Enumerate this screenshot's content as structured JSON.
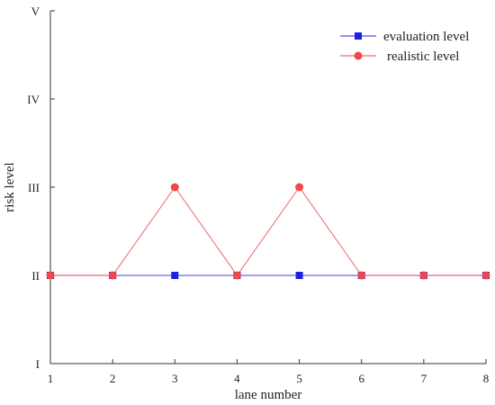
{
  "chart_data": {
    "type": "line",
    "title": "",
    "xlabel": "lane number",
    "ylabel": "risk level",
    "x": [
      1,
      2,
      3,
      4,
      5,
      6,
      7,
      8
    ],
    "xlim": [
      1,
      8
    ],
    "ylim": [
      1,
      5
    ],
    "x_tick_labels": [
      "1",
      "2",
      "3",
      "4",
      "5",
      "6",
      "7",
      "8"
    ],
    "y_ticks": [
      1,
      2,
      3,
      4,
      5
    ],
    "y_tick_labels": [
      "I",
      "II",
      "III",
      "IV",
      "V"
    ],
    "grid": false,
    "legend_position": "top-right",
    "series": [
      {
        "name": "evaluation level",
        "values": [
          2,
          2,
          2,
          2,
          2,
          2,
          2,
          2
        ],
        "color": "#1f1fe0",
        "marker": "square"
      },
      {
        "name": "realistic level",
        "values": [
          2,
          2,
          3,
          2,
          3,
          2,
          2,
          2
        ],
        "color": "#f04848",
        "marker": "circle"
      }
    ]
  }
}
